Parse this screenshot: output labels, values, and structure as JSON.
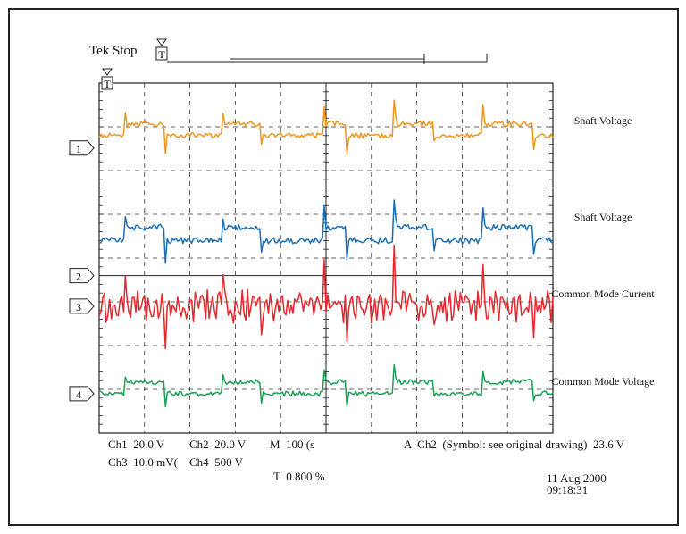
{
  "header": {
    "title": "Tek Stop",
    "trigger_symbol": "T"
  },
  "channels": [
    {
      "id": "1",
      "label": "Shaft Voltage",
      "color": "#f0961e"
    },
    {
      "id": "2",
      "label": "Shaft Voltage",
      "color": "#1c6fb5"
    },
    {
      "id": "3",
      "label": "Common Mode Current",
      "color": "#e5262c"
    },
    {
      "id": "4",
      "label": "Common Mode Voltage",
      "color": "#1aa054"
    }
  ],
  "readout": {
    "ch1": "Ch1  20.0 V",
    "ch2": "Ch2  20.0 V",
    "ch3": "Ch3  10.0 mV(",
    "ch4": "Ch4  500 V",
    "timebase": "M  100 (s",
    "trigger": "A  Ch2  (Symbol: see original drawing)  23.6 V",
    "trigger_position": "T  0.800 %",
    "date": "11 Aug 2000",
    "time": "09:18:31"
  },
  "chart_data": {
    "type": "line",
    "title": "Tek Stop",
    "grid": true,
    "x_divisions": 10,
    "y_divisions": 8,
    "series": [
      {
        "name": "Shaft Voltage",
        "channel": 1,
        "color": "#f0961e",
        "baseline_div": 1.2,
        "step_amp_div": 0.27,
        "spike_amp_div": 0.55,
        "noise_div": 0.06
      },
      {
        "name": "Shaft Voltage",
        "channel": 2,
        "color": "#1c6fb5",
        "baseline_div": 3.6,
        "step_amp_div": 0.3,
        "spike_amp_div": 0.6,
        "noise_div": 0.07
      },
      {
        "name": "Common Mode Current",
        "channel": 3,
        "color": "#e5262c",
        "baseline_div": 5.1,
        "step_amp_div": 0.0,
        "spike_amp_div": 1.4,
        "noise_div": 0.25
      },
      {
        "name": "Common Mode Voltage",
        "channel": 4,
        "color": "#1aa054",
        "baseline_div": 7.1,
        "step_amp_div": 0.27,
        "spike_amp_div": 0.35,
        "noise_div": 0.06
      }
    ],
    "switching_events_div": [
      0.55,
      1.45,
      2.7,
      3.55,
      4.95,
      5.45,
      6.5,
      7.35,
      8.45,
      9.55
    ]
  }
}
